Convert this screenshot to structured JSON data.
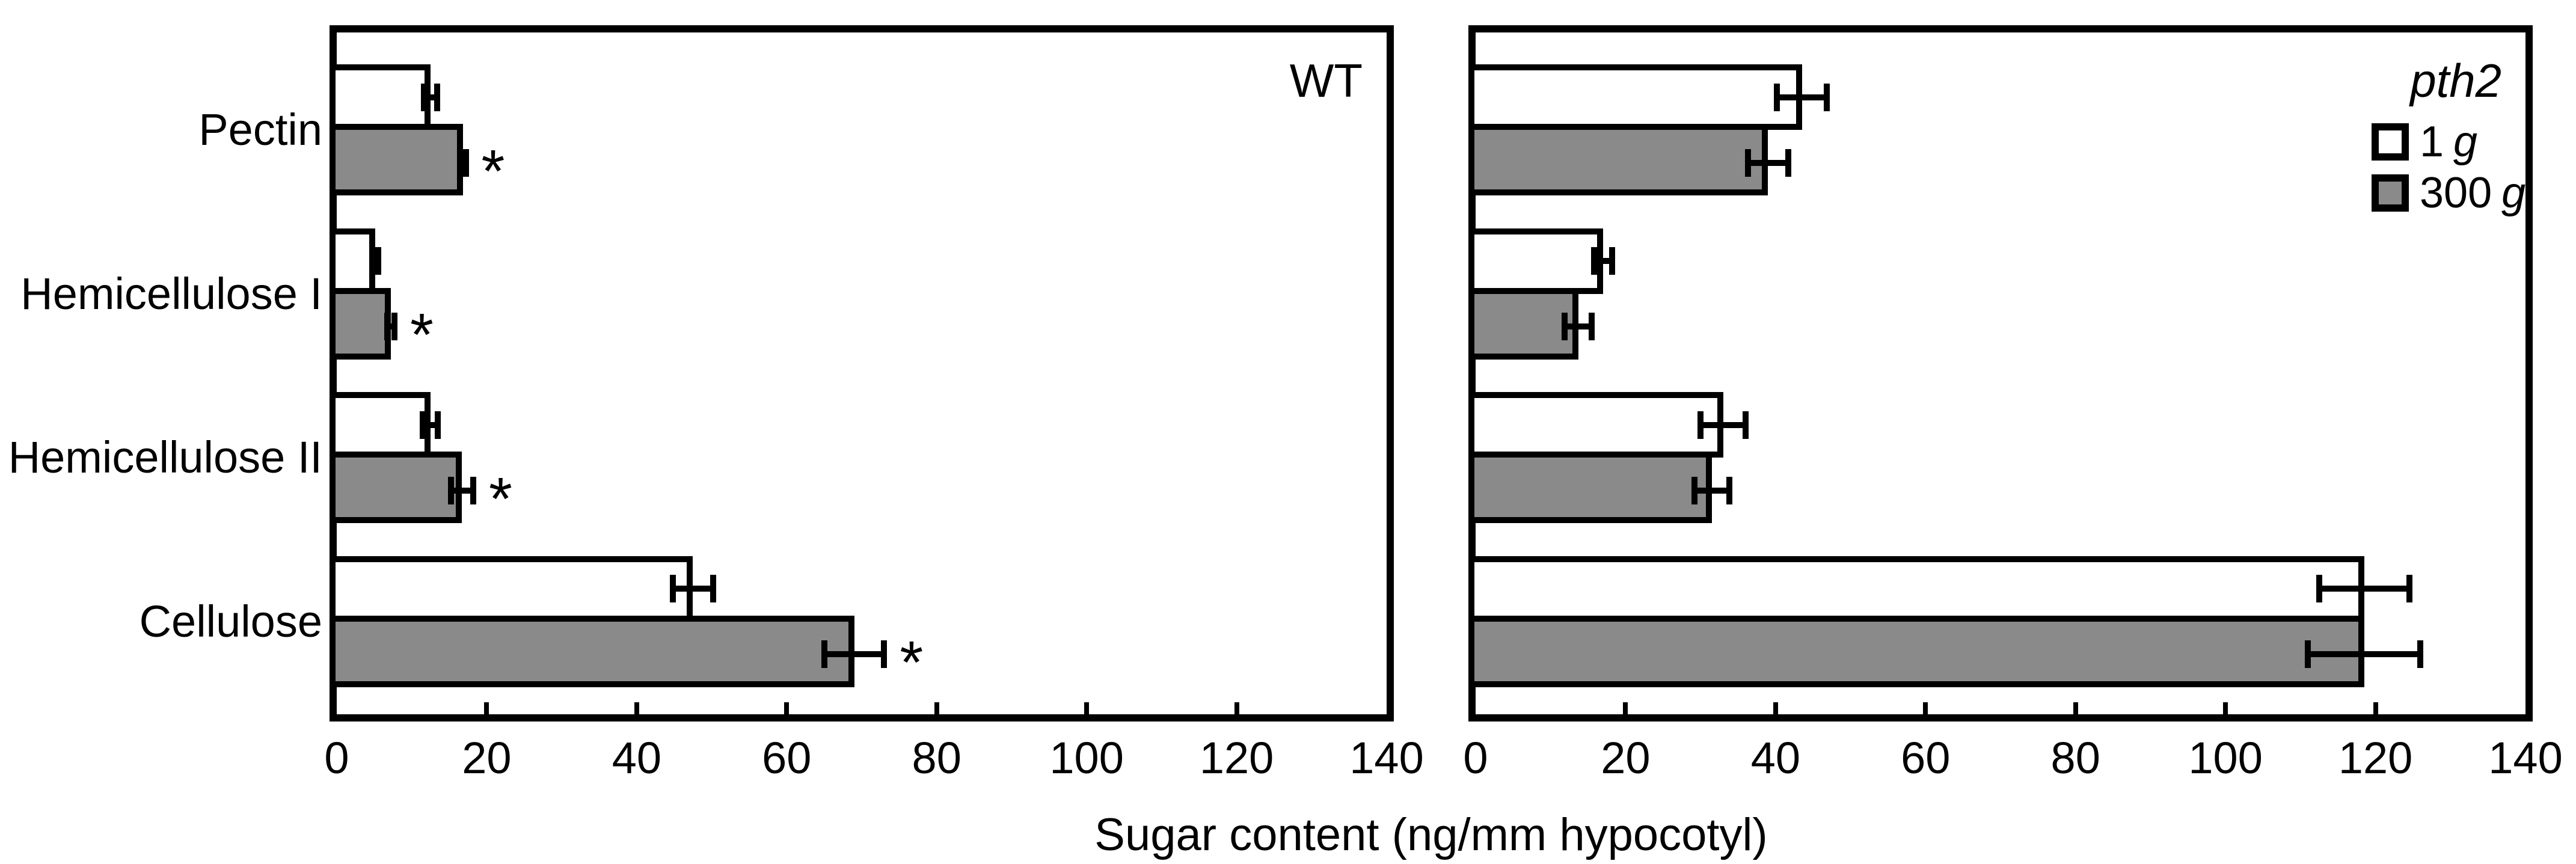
{
  "figure": {
    "axis_title": "Sugar content (ng/mm hypocotyl)",
    "categories": [
      "Pectin",
      "Hemicellulose I",
      "Hemicellulose II",
      "Cellulose"
    ],
    "x_ticks": [
      "0",
      "20",
      "40",
      "60",
      "80",
      "100",
      "120",
      "140"
    ],
    "sig_marker": "*",
    "colors": {
      "bar_1g": "#ffffff",
      "bar_300g": "#8a8a8a",
      "axis": "#000000"
    }
  },
  "legend": {
    "title": "pth2",
    "entries": [
      {
        "value": "1",
        "unit": "g"
      },
      {
        "value": "300",
        "unit": "g"
      }
    ]
  },
  "chart_data": [
    {
      "type": "bar",
      "orientation": "horizontal",
      "title": "WT",
      "categories": [
        "Pectin",
        "Hemicellulose I",
        "Hemicellulose II",
        "Cellulose"
      ],
      "series": [
        {
          "name": "1 g",
          "fill": "white",
          "values": [
            12.5,
            5.1,
            12.5,
            47.5
          ],
          "errors": [
            0.9,
            0.4,
            1.0,
            2.7
          ],
          "significant": [
            false,
            false,
            false,
            false
          ]
        },
        {
          "name": "300 g",
          "fill": "gray",
          "values": [
            16.8,
            7.2,
            16.7,
            69.0
          ],
          "errors": [
            0.4,
            0.5,
            1.5,
            4.0
          ],
          "significant": [
            true,
            true,
            true,
            true
          ]
        }
      ],
      "xlim": [
        0,
        140
      ],
      "xlabel": "Sugar content (ng/mm hypocotyl)",
      "grid": false,
      "legend_position": "none"
    },
    {
      "type": "bar",
      "orientation": "horizontal",
      "title": "pth2",
      "categories": [
        "Pectin",
        "Hemicellulose I",
        "Hemicellulose II",
        "Cellulose"
      ],
      "series": [
        {
          "name": "1 g",
          "fill": "white",
          "values": [
            43.5,
            17.0,
            33.0,
            118.5
          ],
          "errors": [
            3.3,
            1.2,
            3.0,
            6.0
          ],
          "significant": [
            false,
            false,
            false,
            false
          ]
        },
        {
          "name": "300 g",
          "fill": "gray",
          "values": [
            39.0,
            13.7,
            31.5,
            118.5
          ],
          "errors": [
            2.7,
            1.8,
            2.3,
            7.5
          ],
          "significant": [
            false,
            false,
            false,
            false
          ]
        }
      ],
      "xlim": [
        0,
        140
      ],
      "xlabel": "Sugar content (ng/mm hypocotyl)",
      "grid": false,
      "legend_position": "upper right"
    }
  ]
}
